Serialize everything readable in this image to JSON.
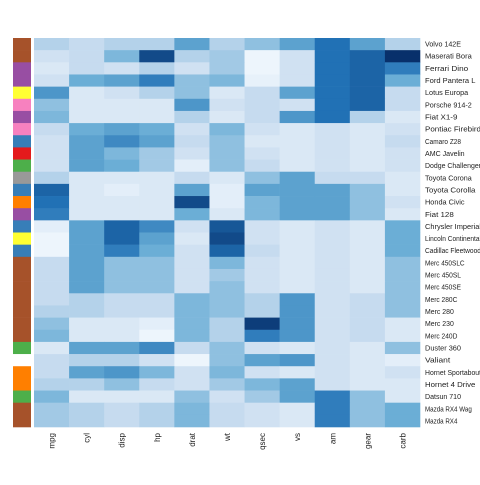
{
  "chart_data": {
    "type": "heatmap",
    "title": "",
    "xlabel": "",
    "ylabel": "",
    "columns": [
      "mpg",
      "cyl",
      "disp",
      "hp",
      "drat",
      "wt",
      "qsec",
      "vs",
      "am",
      "gear",
      "carb"
    ],
    "rows": [
      "Volvo 142E",
      "Maserati Bora",
      "Ferrari Dino",
      "Ford Pantera L",
      "Lotus Europa",
      "Porsche 914-2",
      "Fiat X1-9",
      "Pontiac Firebird",
      "Camaro Z28",
      "AMC Javelin",
      "Dodge Challenger",
      "Toyota Corona",
      "Toyota Corolla",
      "Honda Civic",
      "Fiat 128",
      "Chrysler Imperial",
      "Lincoln Continental",
      "Cadillac Fleetwood",
      "Merc 450SLC",
      "Merc 450SL",
      "Merc 450SE",
      "Merc 280C",
      "Merc 280",
      "Merc 230",
      "Merc 240D",
      "Duster 360",
      "Valiant",
      "Hornet Sportabout",
      "Hornet 4 Drive",
      "Datsun 710",
      "Mazda RX4 Wag",
      "Mazda RX4"
    ],
    "row_labels_display": [
      "Volvo 142E",
      "Maserati Bora",
      "Ferrari Dino",
      "Ford Pantera L",
      "Lotus Europa",
      "Porsche 914-2",
      "Fiat X1-9",
      "Pontiac Firebird",
      "Camaro Z28",
      "AMC Javelin",
      "Dodge Challenger",
      "Toyota Corona",
      "Toyota Corolla",
      "Honda Civic",
      "Fiat 128",
      "Chrysler Imperial",
      "Lincoln Continental",
      "Cadillac Fleetwood",
      "Merc 450SLC",
      "Merc 450SL",
      "Merc 450SE",
      "Merc 280C",
      "Merc 280",
      "Merc 230",
      "Merc 240D",
      "Duster 360",
      "Valiant",
      "Hornet Sportabout",
      "Hornet 4 Drive",
      "Datsun 710",
      "Mazda RX4 Wag",
      "Mazda RX4"
    ],
    "row_group_colors": [
      "#a6522a",
      "#a6522a",
      "#984ea3",
      "#984ea3",
      "#ffff33",
      "#f781bf",
      "#984ea3",
      "#f781bf",
      "#377eb8",
      "#e41a1c",
      "#4daf4a",
      "#999999",
      "#377eb8",
      "#ff7f00",
      "#984ea3",
      "#377eb8",
      "#ffff33",
      "#377eb8",
      "#a6522a",
      "#a6522a",
      "#a6522a",
      "#a6522a",
      "#a6522a",
      "#a6522a",
      "#a6522a",
      "#4daf4a",
      "#ffffff",
      "#ff7f00",
      "#ff7f00",
      "#4daf4a",
      "#a6522a",
      "#a6522a"
    ],
    "values": [
      [
        0.3,
        0.25,
        0.3,
        0.3,
        0.55,
        0.3,
        0.4,
        0.55,
        0.75,
        0.55,
        0.3
      ],
      [
        0.2,
        0.25,
        0.45,
        0.9,
        0.3,
        0.35,
        0.05,
        0.2,
        0.75,
        0.8,
        1.0
      ],
      [
        0.15,
        0.25,
        0.2,
        0.3,
        0.2,
        0.35,
        0.05,
        0.2,
        0.75,
        0.8,
        0.7
      ],
      [
        0.2,
        0.5,
        0.55,
        0.7,
        0.4,
        0.45,
        0.08,
        0.2,
        0.75,
        0.8,
        0.5
      ],
      [
        0.6,
        0.15,
        0.2,
        0.3,
        0.4,
        0.15,
        0.25,
        0.55,
        0.75,
        0.8,
        0.25
      ],
      [
        0.4,
        0.15,
        0.15,
        0.15,
        0.6,
        0.2,
        0.25,
        0.2,
        0.75,
        0.8,
        0.25
      ],
      [
        0.45,
        0.15,
        0.15,
        0.15,
        0.3,
        0.15,
        0.25,
        0.6,
        0.75,
        0.3,
        0.15
      ],
      [
        0.25,
        0.5,
        0.55,
        0.5,
        0.2,
        0.45,
        0.2,
        0.15,
        0.2,
        0.15,
        0.2
      ],
      [
        0.2,
        0.55,
        0.65,
        0.55,
        0.25,
        0.4,
        0.15,
        0.15,
        0.2,
        0.15,
        0.25
      ],
      [
        0.2,
        0.55,
        0.45,
        0.35,
        0.2,
        0.4,
        0.2,
        0.15,
        0.2,
        0.15,
        0.2
      ],
      [
        0.2,
        0.55,
        0.5,
        0.35,
        0.1,
        0.4,
        0.25,
        0.15,
        0.2,
        0.15,
        0.2
      ],
      [
        0.3,
        0.15,
        0.15,
        0.15,
        0.25,
        0.15,
        0.4,
        0.55,
        0.25,
        0.25,
        0.15
      ],
      [
        0.8,
        0.15,
        0.1,
        0.15,
        0.55,
        0.1,
        0.55,
        0.55,
        0.55,
        0.4,
        0.15
      ],
      [
        0.75,
        0.15,
        0.15,
        0.15,
        0.9,
        0.1,
        0.45,
        0.55,
        0.55,
        0.4,
        0.2
      ],
      [
        0.7,
        0.15,
        0.15,
        0.15,
        0.5,
        0.15,
        0.45,
        0.55,
        0.55,
        0.4,
        0.15
      ],
      [
        0.1,
        0.55,
        0.8,
        0.65,
        0.2,
        0.85,
        0.2,
        0.15,
        0.2,
        0.15,
        0.5
      ],
      [
        0.05,
        0.55,
        0.8,
        0.55,
        0.15,
        0.9,
        0.2,
        0.15,
        0.2,
        0.15,
        0.5
      ],
      [
        0.05,
        0.55,
        0.7,
        0.5,
        0.2,
        0.8,
        0.25,
        0.15,
        0.2,
        0.15,
        0.5
      ],
      [
        0.25,
        0.55,
        0.4,
        0.4,
        0.2,
        0.45,
        0.2,
        0.15,
        0.2,
        0.15,
        0.4
      ],
      [
        0.25,
        0.55,
        0.4,
        0.4,
        0.2,
        0.35,
        0.2,
        0.15,
        0.2,
        0.15,
        0.4
      ],
      [
        0.25,
        0.55,
        0.4,
        0.4,
        0.2,
        0.4,
        0.2,
        0.15,
        0.2,
        0.15,
        0.4
      ],
      [
        0.25,
        0.3,
        0.25,
        0.25,
        0.45,
        0.4,
        0.3,
        0.6,
        0.2,
        0.25,
        0.4
      ],
      [
        0.3,
        0.3,
        0.25,
        0.25,
        0.45,
        0.4,
        0.3,
        0.6,
        0.2,
        0.25,
        0.4
      ],
      [
        0.4,
        0.15,
        0.15,
        0.1,
        0.45,
        0.3,
        0.95,
        0.6,
        0.2,
        0.25,
        0.15
      ],
      [
        0.45,
        0.15,
        0.15,
        0.05,
        0.45,
        0.3,
        0.7,
        0.6,
        0.2,
        0.25,
        0.15
      ],
      [
        0.15,
        0.55,
        0.55,
        0.65,
        0.25,
        0.4,
        0.2,
        0.15,
        0.2,
        0.15,
        0.4
      ],
      [
        0.25,
        0.3,
        0.3,
        0.2,
        0.05,
        0.4,
        0.55,
        0.6,
        0.2,
        0.15,
        0.1
      ],
      [
        0.25,
        0.55,
        0.6,
        0.45,
        0.2,
        0.45,
        0.2,
        0.15,
        0.2,
        0.15,
        0.2
      ],
      [
        0.3,
        0.3,
        0.4,
        0.25,
        0.2,
        0.35,
        0.45,
        0.55,
        0.2,
        0.15,
        0.15
      ],
      [
        0.45,
        0.15,
        0.15,
        0.15,
        0.4,
        0.2,
        0.35,
        0.55,
        0.7,
        0.4,
        0.15
      ],
      [
        0.35,
        0.3,
        0.25,
        0.3,
        0.45,
        0.25,
        0.2,
        0.15,
        0.7,
        0.4,
        0.5
      ],
      [
        0.35,
        0.3,
        0.25,
        0.3,
        0.45,
        0.25,
        0.2,
        0.15,
        0.7,
        0.4,
        0.5
      ]
    ],
    "colormap": [
      "#f7fbff",
      "#c6dbef",
      "#6baed6",
      "#2171b5",
      "#08306b"
    ],
    "grid": false,
    "legend": "none",
    "layout_note": "row side color bar left, column labels bottom rotated, row labels right"
  }
}
